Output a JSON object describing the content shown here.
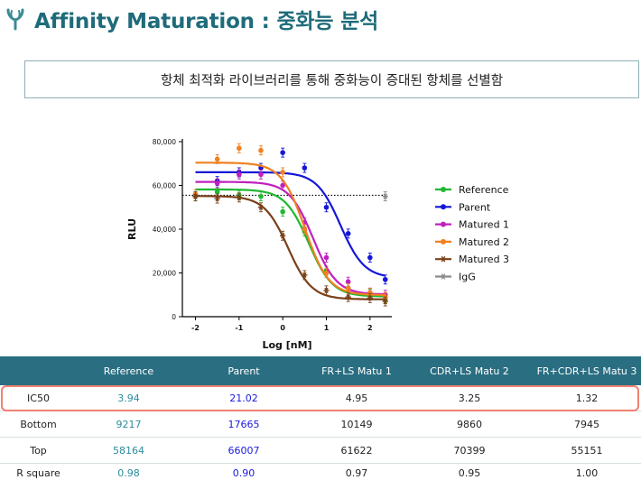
{
  "page": {
    "title": "Affinity Maturation : 중화능 분석",
    "subtitle": "항체 최적화 라이브러리를 통해 중화능이 증대된 항체를 선별함"
  },
  "chart_data": {
    "type": "scatter",
    "xlabel": "Log [nM]",
    "ylabel": "RLU",
    "xlim": [
      -2.3,
      2.5
    ],
    "ylim": [
      0,
      80000
    ],
    "xticks": [
      -2,
      -1,
      0,
      1,
      2
    ],
    "yticks": [
      0,
      20000,
      40000,
      60000,
      80000
    ],
    "ytick_labels": [
      "0",
      "20,000",
      "40,000",
      "60,000",
      "80,000"
    ],
    "legend_position": "right",
    "igg_reference_line": 55500,
    "series": [
      {
        "name": "Reference",
        "color": "#1fb830",
        "marker": "circle",
        "x": [
          -2,
          -1.5,
          -1,
          -0.5,
          0,
          0.5,
          1,
          1.5,
          2,
          2.35
        ],
        "y": [
          55000,
          57000,
          55500,
          55000,
          48000,
          39000,
          21000,
          13000,
          10500,
          8000
        ],
        "curve": {
          "top": 58164,
          "bottom": 9217,
          "logic50": 0.595,
          "hill": 1.6
        }
      },
      {
        "name": "Parent",
        "color": "#1616d8",
        "marker": "circle",
        "x": [
          -1.5,
          -1,
          -0.5,
          0,
          0.5,
          1,
          1.5,
          2,
          2.35
        ],
        "y": [
          62000,
          66000,
          68000,
          75000,
          68000,
          50000,
          38000,
          27000,
          17000
        ],
        "curve": {
          "top": 66007,
          "bottom": 17665,
          "logic50": 1.323,
          "hill": 1.6
        }
      },
      {
        "name": "Matured 1",
        "color": "#c020c0",
        "marker": "circle",
        "x": [
          -1.5,
          -1,
          -0.5,
          0,
          0.5,
          1,
          1.5,
          2,
          2.35
        ],
        "y": [
          61000,
          65000,
          65000,
          60000,
          43000,
          27000,
          16000,
          11000,
          10000
        ],
        "curve": {
          "top": 61622,
          "bottom": 10149,
          "logic50": 0.695,
          "hill": 1.6
        }
      },
      {
        "name": "Matured 2",
        "color": "#f08020",
        "marker": "circle",
        "x": [
          -2,
          -1.5,
          -1,
          -0.5,
          0,
          0.5,
          1,
          1.5,
          2,
          2.35
        ],
        "y": [
          56000,
          72000,
          77000,
          76000,
          66000,
          40000,
          20000,
          13000,
          11000,
          9000
        ],
        "curve": {
          "top": 70399,
          "bottom": 9860,
          "logic50": 0.512,
          "hill": 1.6
        }
      },
      {
        "name": "Matured 3",
        "color": "#7a4018",
        "marker": "star",
        "x": [
          -2,
          -1.5,
          -1,
          -0.5,
          0,
          0.5,
          1,
          1.5,
          2,
          2.35
        ],
        "y": [
          55000,
          54000,
          54500,
          50000,
          37000,
          19000,
          12000,
          9000,
          8500,
          7000
        ],
        "curve": {
          "top": 55151,
          "bottom": 7945,
          "logic50": 0.121,
          "hill": 1.6
        }
      },
      {
        "name": "IgG",
        "color": "#8a8a8a",
        "marker": "star",
        "x": [
          2.35
        ],
        "y": [
          55000
        ]
      }
    ]
  },
  "table": {
    "headers": [
      "",
      "Reference",
      "Parent",
      "FR+LS  Matu 1",
      "CDR+LS  Matu 2",
      "FR+CDR+LS Matu 3"
    ],
    "rows": [
      {
        "label": "IC50",
        "values": [
          "3.94",
          "21.02",
          "4.95",
          "3.25",
          "1.32"
        ]
      },
      {
        "label": "Bottom",
        "values": [
          "9217",
          "17665",
          "10149",
          "9860",
          "7945"
        ]
      },
      {
        "label": "Top",
        "values": [
          "58164",
          "66007",
          "61622",
          "70399",
          "55151"
        ]
      },
      {
        "label": "R square",
        "values": [
          "0.98",
          "0.90",
          "0.97",
          "0.95",
          "1.00"
        ]
      }
    ]
  },
  "colors": {
    "title": "#1e6b7a",
    "table_header_bg": "#2a6e82",
    "highlight_border": "#f08070"
  },
  "icons": {
    "logo": "antibody-y-logo-icon"
  }
}
